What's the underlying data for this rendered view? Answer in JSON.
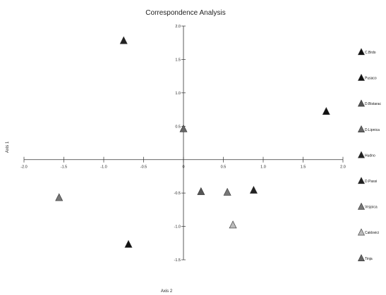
{
  "chart_data": {
    "type": "scatter",
    "title": "Correspondence Analysis",
    "xlabel": "Axis 2",
    "ylabel": "Axis 1",
    "xlim": [
      -2.0,
      2.0
    ],
    "ylim": [
      -1.5,
      2.0
    ],
    "x_ticks": [
      "-2.0",
      "-1.5",
      "-1.0",
      "-0.5",
      "0",
      "0.5",
      "1.0",
      "1.5",
      "2.0"
    ],
    "y_ticks": [
      "2.0",
      "1.5",
      "1.0",
      "0.5",
      "-0.5",
      "-1.0",
      "-1.5"
    ],
    "x_tick_values": [
      -2.0,
      -1.5,
      -1.0,
      -0.5,
      0,
      0.5,
      1.0,
      1.5,
      2.0
    ],
    "y_tick_values": [
      2.0,
      1.5,
      1.0,
      0.5,
      -0.5,
      -1.0,
      -1.5
    ],
    "grid": false,
    "legend_position": "right",
    "legend": [
      {
        "label": "C.Brdo",
        "color": "#111111"
      },
      {
        "label": "Pusaco",
        "color": "#111111"
      },
      {
        "label": "D.Bistarac",
        "color": "#555555"
      },
      {
        "label": "D.Lipnica",
        "color": "#666666"
      },
      {
        "label": "Hudno",
        "color": "#222222"
      },
      {
        "label": "D.Passi",
        "color": "#222222"
      },
      {
        "label": "Vrsjoica",
        "color": "#777777"
      },
      {
        "label": "Caklovici",
        "color": "#bbbbbb"
      },
      {
        "label": "Tinja",
        "color": "#666666"
      }
    ],
    "points": [
      {
        "x": -0.75,
        "y": 1.78,
        "color": "#222222"
      },
      {
        "x": 1.79,
        "y": 0.72,
        "color": "#111111"
      },
      {
        "x": 0.0,
        "y": 0.46,
        "color": "#666666"
      },
      {
        "x": 0.22,
        "y": -0.48,
        "color": "#555555"
      },
      {
        "x": 0.55,
        "y": -0.49,
        "color": "#777777"
      },
      {
        "x": 0.88,
        "y": -0.46,
        "color": "#222222"
      },
      {
        "x": -1.56,
        "y": -0.57,
        "color": "#777777"
      },
      {
        "x": 0.62,
        "y": -0.98,
        "color": "#bbbbbb"
      },
      {
        "x": -0.69,
        "y": -1.27,
        "color": "#111111"
      }
    ]
  }
}
